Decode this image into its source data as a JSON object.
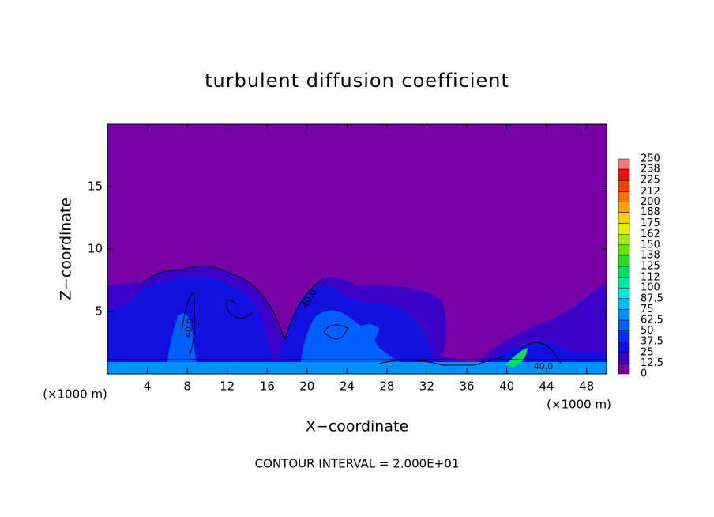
{
  "chart_data": {
    "type": "contour",
    "title": "turbulent diffusion coefficient",
    "x_label": "X−coordinate",
    "y_label": "Z−coordinate",
    "x_unit_label": "(×1000 m)",
    "x_unit_label_right": "(×1000 m)",
    "footnote": "CONTOUR INTERVAL = 2.000E+01",
    "contour_labels": [
      "40.0",
      "40.0",
      "40.0"
    ],
    "xlim": [
      0,
      50
    ],
    "xticks": [
      4,
      8,
      12,
      16,
      20,
      24,
      28,
      32,
      36,
      40,
      44,
      48
    ],
    "ylim": [
      0,
      20
    ],
    "yticks": [
      5,
      10,
      15
    ],
    "colorbar": {
      "clim": [
        0,
        250
      ],
      "levels": [
        0,
        12.5,
        25,
        37.5,
        50,
        62.5,
        75,
        87.5,
        100,
        112,
        125,
        138,
        150,
        162,
        175,
        188,
        200,
        212,
        225,
        238,
        250
      ],
      "colors": [
        "#7800a8",
        "#3a00c8",
        "#1010e0",
        "#0030ff",
        "#0060ff",
        "#0090ff",
        "#00c0ff",
        "#00e8e0",
        "#00e8a0",
        "#00e060",
        "#20e020",
        "#60e800",
        "#a0f000",
        "#e0f000",
        "#f8d000",
        "#f8a000",
        "#f87000",
        "#f84000",
        "#f01010",
        "#f07878"
      ]
    }
  }
}
